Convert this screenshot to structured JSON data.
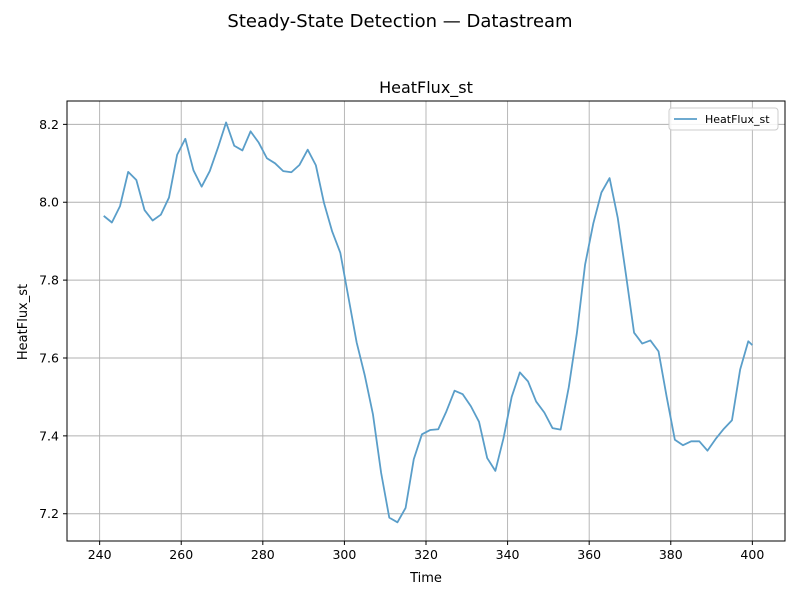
{
  "figure": {
    "suptitle": "Steady-State Detection — Datastream"
  },
  "chart_data": {
    "type": "line",
    "title": "HeatFlux_st",
    "xlabel": "Time",
    "ylabel": "HeatFlux_st",
    "xlim": [
      232,
      408
    ],
    "ylim": [
      7.13,
      8.26
    ],
    "xticks": [
      240,
      260,
      280,
      300,
      320,
      340,
      360,
      380,
      400
    ],
    "yticks": [
      7.2,
      7.4,
      7.6,
      7.8,
      8.0,
      8.2
    ],
    "grid": true,
    "legend_position": "top-right",
    "series": [
      {
        "name": "HeatFlux_st",
        "color": "#5a9ec9",
        "x": [
          241,
          243,
          245,
          247,
          249,
          251,
          253,
          255,
          257,
          259,
          261,
          263,
          265,
          267,
          269,
          271,
          273,
          275,
          277,
          279,
          281,
          283,
          285,
          287,
          289,
          291,
          293,
          295,
          297,
          299,
          301,
          303,
          305,
          307,
          309,
          311,
          313,
          315,
          317,
          319,
          321,
          323,
          325,
          327,
          329,
          331,
          333,
          335,
          337,
          339,
          341,
          343,
          345,
          347,
          349,
          351,
          353,
          355,
          357,
          359,
          361,
          363,
          365,
          367,
          369,
          371,
          373,
          375,
          377,
          379,
          381,
          383,
          385,
          387,
          389,
          391,
          393,
          395,
          397,
          399,
          400
        ],
        "y": [
          7.965,
          7.948,
          7.99,
          8.078,
          8.057,
          7.98,
          7.953,
          7.968,
          8.012,
          8.122,
          8.163,
          8.082,
          8.04,
          8.08,
          8.14,
          8.205,
          8.145,
          8.133,
          8.182,
          8.153,
          8.113,
          8.1,
          8.08,
          8.077,
          8.096,
          8.135,
          8.095,
          7.998,
          7.925,
          7.87,
          7.755,
          7.64,
          7.555,
          7.455,
          7.305,
          7.19,
          7.178,
          7.215,
          7.34,
          7.404,
          7.415,
          7.417,
          7.463,
          7.516,
          7.507,
          7.476,
          7.436,
          7.343,
          7.31,
          7.394,
          7.5,
          7.563,
          7.54,
          7.488,
          7.46,
          7.42,
          7.416,
          7.525,
          7.665,
          7.84,
          7.945,
          8.025,
          8.062,
          7.96,
          7.815,
          7.665,
          7.637,
          7.645,
          7.617,
          7.5,
          7.39,
          7.376,
          7.386,
          7.386,
          7.362,
          7.392,
          7.418,
          7.44,
          7.57,
          7.643,
          7.633
        ]
      }
    ]
  }
}
